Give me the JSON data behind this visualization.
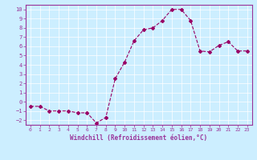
{
  "x": [
    0,
    1,
    2,
    3,
    4,
    5,
    6,
    7,
    8,
    9,
    10,
    11,
    12,
    13,
    14,
    15,
    16,
    17,
    18,
    19,
    20,
    21,
    22,
    23
  ],
  "y": [
    -0.5,
    -0.5,
    -1.0,
    -1.0,
    -1.0,
    -1.2,
    -1.2,
    -2.3,
    -1.7,
    2.5,
    4.3,
    6.6,
    7.8,
    8.0,
    8.8,
    10.0,
    10.0,
    8.8,
    5.5,
    5.4,
    6.1,
    6.5,
    5.5,
    5.5
  ],
  "line_color": "#990066",
  "marker": "D",
  "marker_size": 2,
  "xlabel": "Windchill (Refroidissement éolien,°C)",
  "xlim": [
    -0.5,
    23.5
  ],
  "ylim": [
    -2.5,
    10.5
  ],
  "yticks": [
    -2,
    -1,
    0,
    1,
    2,
    3,
    4,
    5,
    6,
    7,
    8,
    9,
    10
  ],
  "xticks": [
    0,
    1,
    2,
    3,
    4,
    5,
    6,
    7,
    8,
    9,
    10,
    11,
    12,
    13,
    14,
    15,
    16,
    17,
    18,
    19,
    20,
    21,
    22,
    23
  ],
  "bg_color": "#cceeff",
  "grid_color": "#ffffff",
  "axis_color": "#993399",
  "tick_color": "#993399",
  "label_color": "#993399"
}
